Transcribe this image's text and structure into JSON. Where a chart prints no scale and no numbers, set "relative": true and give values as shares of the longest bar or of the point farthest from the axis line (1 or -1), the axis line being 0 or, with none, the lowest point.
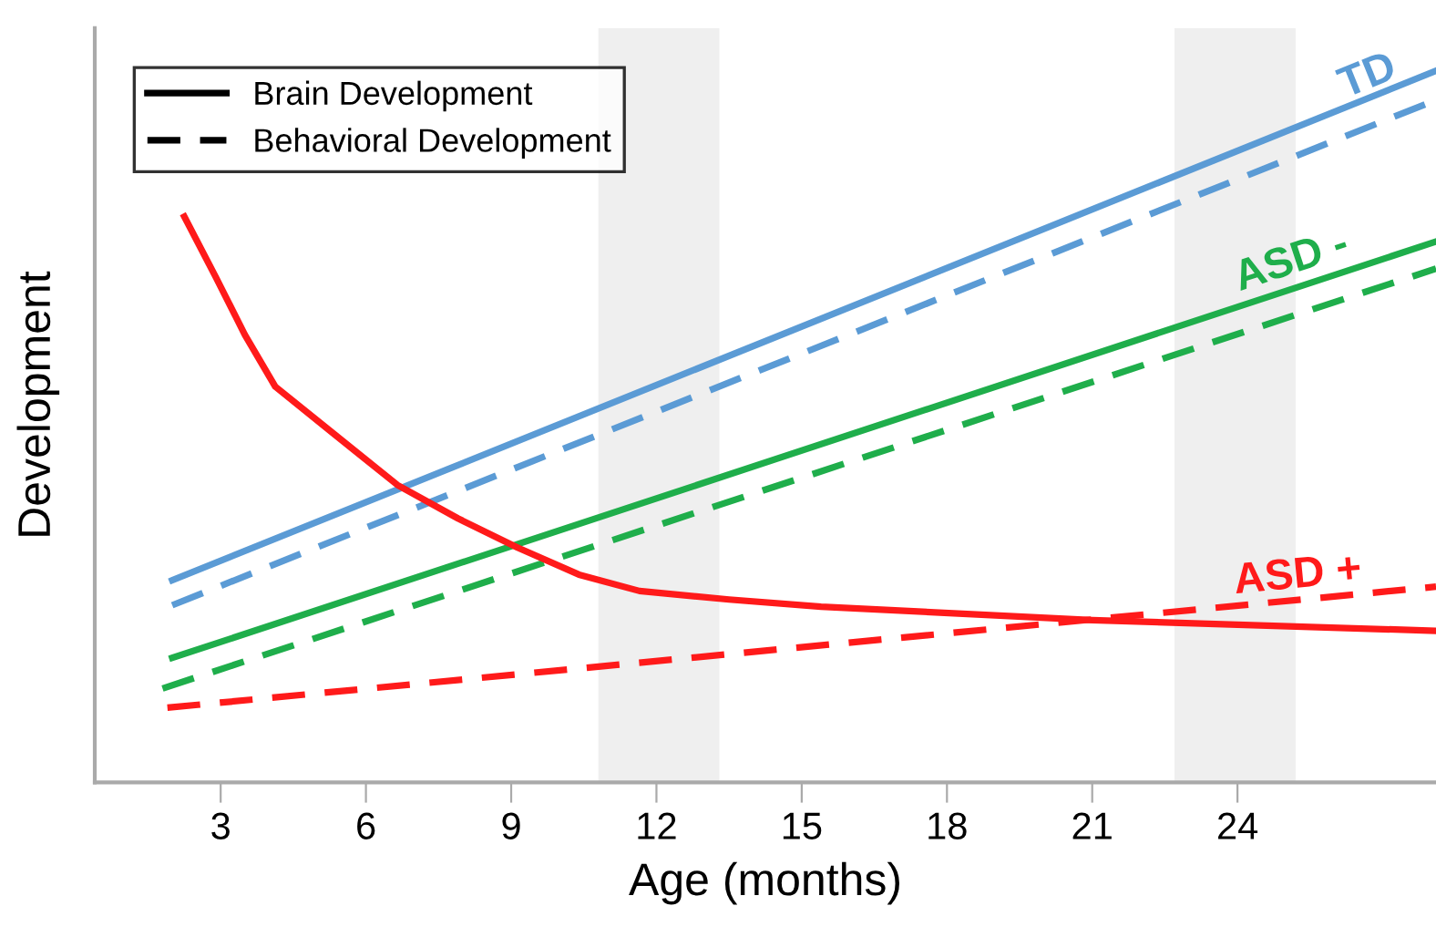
{
  "chart_data": {
    "type": "line",
    "relative": true,
    "xlabel": "Age (months)",
    "ylabel": "Development",
    "xlim": [
      0.4,
      28.1
    ],
    "xticks": [
      3,
      6,
      9,
      12,
      15,
      18,
      21,
      24
    ],
    "grid": false,
    "legend": "top left",
    "tick_labels": "x",
    "bands": [
      {
        "axis": "x",
        "from": 10.8,
        "to": 13.3,
        "color": "#efefef"
      },
      {
        "axis": "x",
        "from": 22.7,
        "to": 25.2,
        "color": "#efefef"
      }
    ],
    "series": [
      {
        "color": "#5b9bd5",
        "line_style": "solid",
        "x": [
          2.0,
          28.1
        ],
        "values": [
          0.284,
          1.0
        ]
      },
      {
        "color": "#5b9bd5",
        "line_style": "dashed",
        "x": [
          2.0,
          28.1
        ],
        "values": [
          0.249,
          0.959
        ]
      },
      {
        "color": "#1fae4b",
        "line_style": "solid",
        "x": [
          2.0,
          28.1
        ],
        "values": [
          0.175,
          0.76
        ]
      },
      {
        "color": "#1fae4b",
        "line_style": "dashed",
        "x": [
          1.8,
          28.1
        ],
        "values": [
          0.132,
          0.722
        ]
      },
      {
        "color": "#ff1a1a",
        "line_style": "solid",
        "x": [
          2.25,
          2.9,
          3.5,
          4.13,
          5.37,
          6.65,
          7.9,
          9.13,
          10.4,
          11.65,
          13.5,
          15.4,
          21.0,
          28.1
        ],
        "values": [
          0.795,
          0.71,
          0.629,
          0.556,
          0.488,
          0.418,
          0.371,
          0.33,
          0.292,
          0.269,
          0.257,
          0.247,
          0.228,
          0.213
        ]
      },
      {
        "color": "#ff1a1a",
        "line_style": "dashed",
        "x": [
          1.9,
          28.1
        ],
        "values": [
          0.105,
          0.275
        ]
      },
      {
        "name": "Brain Development",
        "color": "#000000",
        "line_style": "solid"
      },
      {
        "name": "Behavioral Development",
        "color": "#000000",
        "line_style": "dashed"
      }
    ],
    "annotations": [
      {
        "text": "TD",
        "x": 27.4,
        "y": 0.98
      },
      {
        "text": "ASD -",
        "x": 26.4,
        "y": 0.73
      },
      {
        "text": "ASD +",
        "x": 26.6,
        "y": 0.27
      }
    ]
  }
}
